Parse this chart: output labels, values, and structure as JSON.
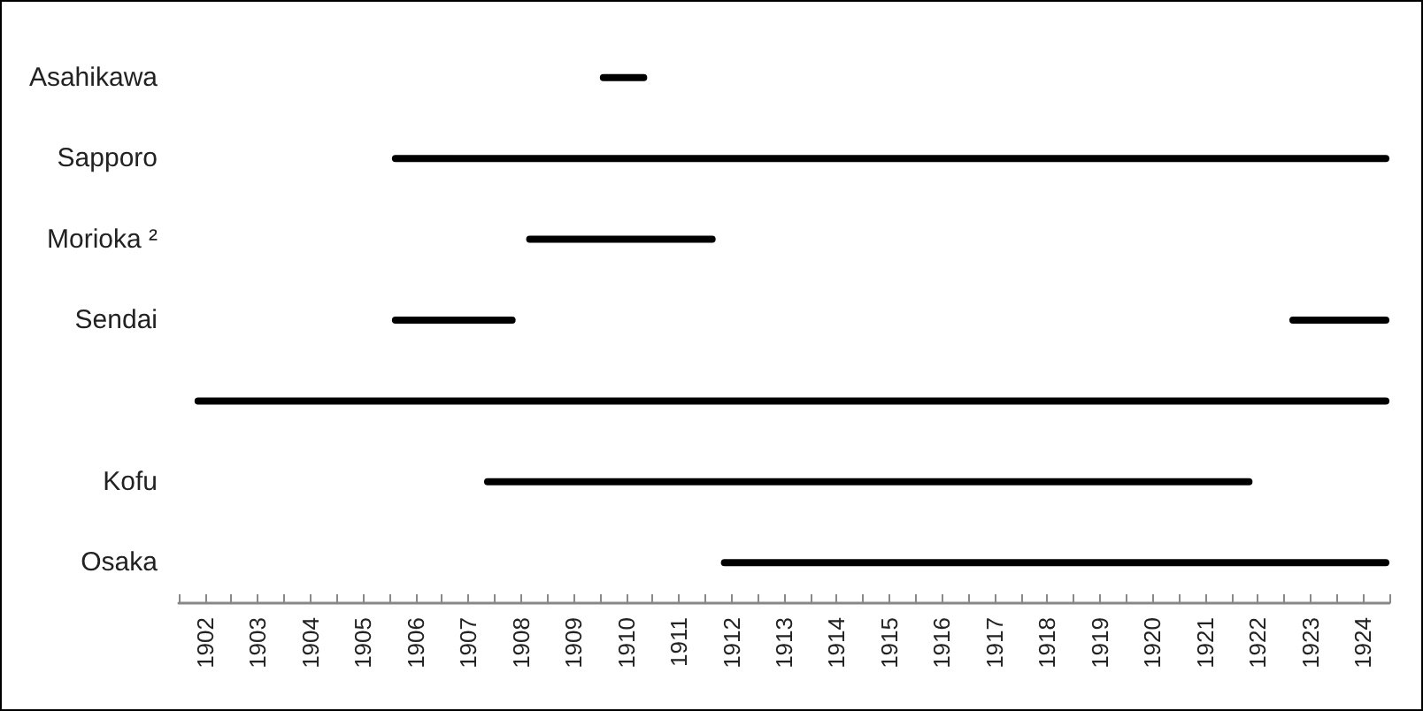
{
  "chart_data": {
    "type": "bar",
    "orientation": "horizontal",
    "grid": false,
    "categories": [
      "Asahikawa",
      "Sapporo",
      "Morioka ²",
      "Sendai",
      null,
      "Kofu",
      "Osaka"
    ],
    "series": [
      {
        "color": "#000000",
        "base": [
          1910.0,
          1906.05,
          1908.6,
          1906.05,
          1902.3,
          1907.8,
          1912.3
        ],
        "values": [
          0.9,
          18.95,
          3.6,
          2.35,
          22.7,
          14.6,
          12.7
        ]
      },
      {
        "color": "#000000",
        "base": [
          null,
          null,
          null,
          1923.1,
          null,
          null,
          null
        ],
        "values": [
          null,
          null,
          null,
          1.9,
          null,
          null,
          null
        ]
      }
    ],
    "xlim": [
      1902,
      1925
    ],
    "xticks": [
      {
        "value": 1902,
        "label": null
      },
      {
        "value": 1902.5,
        "label": "1902"
      },
      {
        "value": 1903,
        "label": null
      },
      {
        "value": 1903.5,
        "label": "1903"
      },
      {
        "value": 1904,
        "label": null
      },
      {
        "value": 1904.5,
        "label": "1904"
      },
      {
        "value": 1905,
        "label": null
      },
      {
        "value": 1905.5,
        "label": "1905"
      },
      {
        "value": 1906,
        "label": null
      },
      {
        "value": 1906.5,
        "label": "1906"
      },
      {
        "value": 1907,
        "label": null
      },
      {
        "value": 1907.5,
        "label": "1907"
      },
      {
        "value": 1908,
        "label": null
      },
      {
        "value": 1908.5,
        "label": "1908"
      },
      {
        "value": 1909,
        "label": null
      },
      {
        "value": 1909.5,
        "label": "1909"
      },
      {
        "value": 1910,
        "label": null
      },
      {
        "value": 1910.5,
        "label": "1910"
      },
      {
        "value": 1911,
        "label": null
      },
      {
        "value": 1911.5,
        "label": "1911"
      },
      {
        "value": 1912,
        "label": null
      },
      {
        "value": 1912.5,
        "label": "1912"
      },
      {
        "value": 1913,
        "label": null
      },
      {
        "value": 1913.5,
        "label": "1913"
      },
      {
        "value": 1914,
        "label": null
      },
      {
        "value": 1914.5,
        "label": "1914"
      },
      {
        "value": 1915,
        "label": null
      },
      {
        "value": 1915.5,
        "label": "1915"
      },
      {
        "value": 1916,
        "label": null
      },
      {
        "value": 1916.5,
        "label": "1916"
      },
      {
        "value": 1917,
        "label": null
      },
      {
        "value": 1917.5,
        "label": "1917"
      },
      {
        "value": 1918,
        "label": null
      },
      {
        "value": 1918.5,
        "label": "1918"
      },
      {
        "value": 1919,
        "label": null
      },
      {
        "value": 1919.5,
        "label": "1919"
      },
      {
        "value": 1920,
        "label": null
      },
      {
        "value": 1920.5,
        "label": "1920"
      },
      {
        "value": 1921,
        "label": null
      },
      {
        "value": 1921.5,
        "label": "1921"
      },
      {
        "value": 1922,
        "label": null
      },
      {
        "value": 1922.5,
        "label": "1922"
      },
      {
        "value": 1923,
        "label": null
      },
      {
        "value": 1923.5,
        "label": "1923"
      },
      {
        "value": 1924,
        "label": null
      },
      {
        "value": 1924.5,
        "label": "1924"
      },
      {
        "value": 1925,
        "label": null
      }
    ]
  }
}
